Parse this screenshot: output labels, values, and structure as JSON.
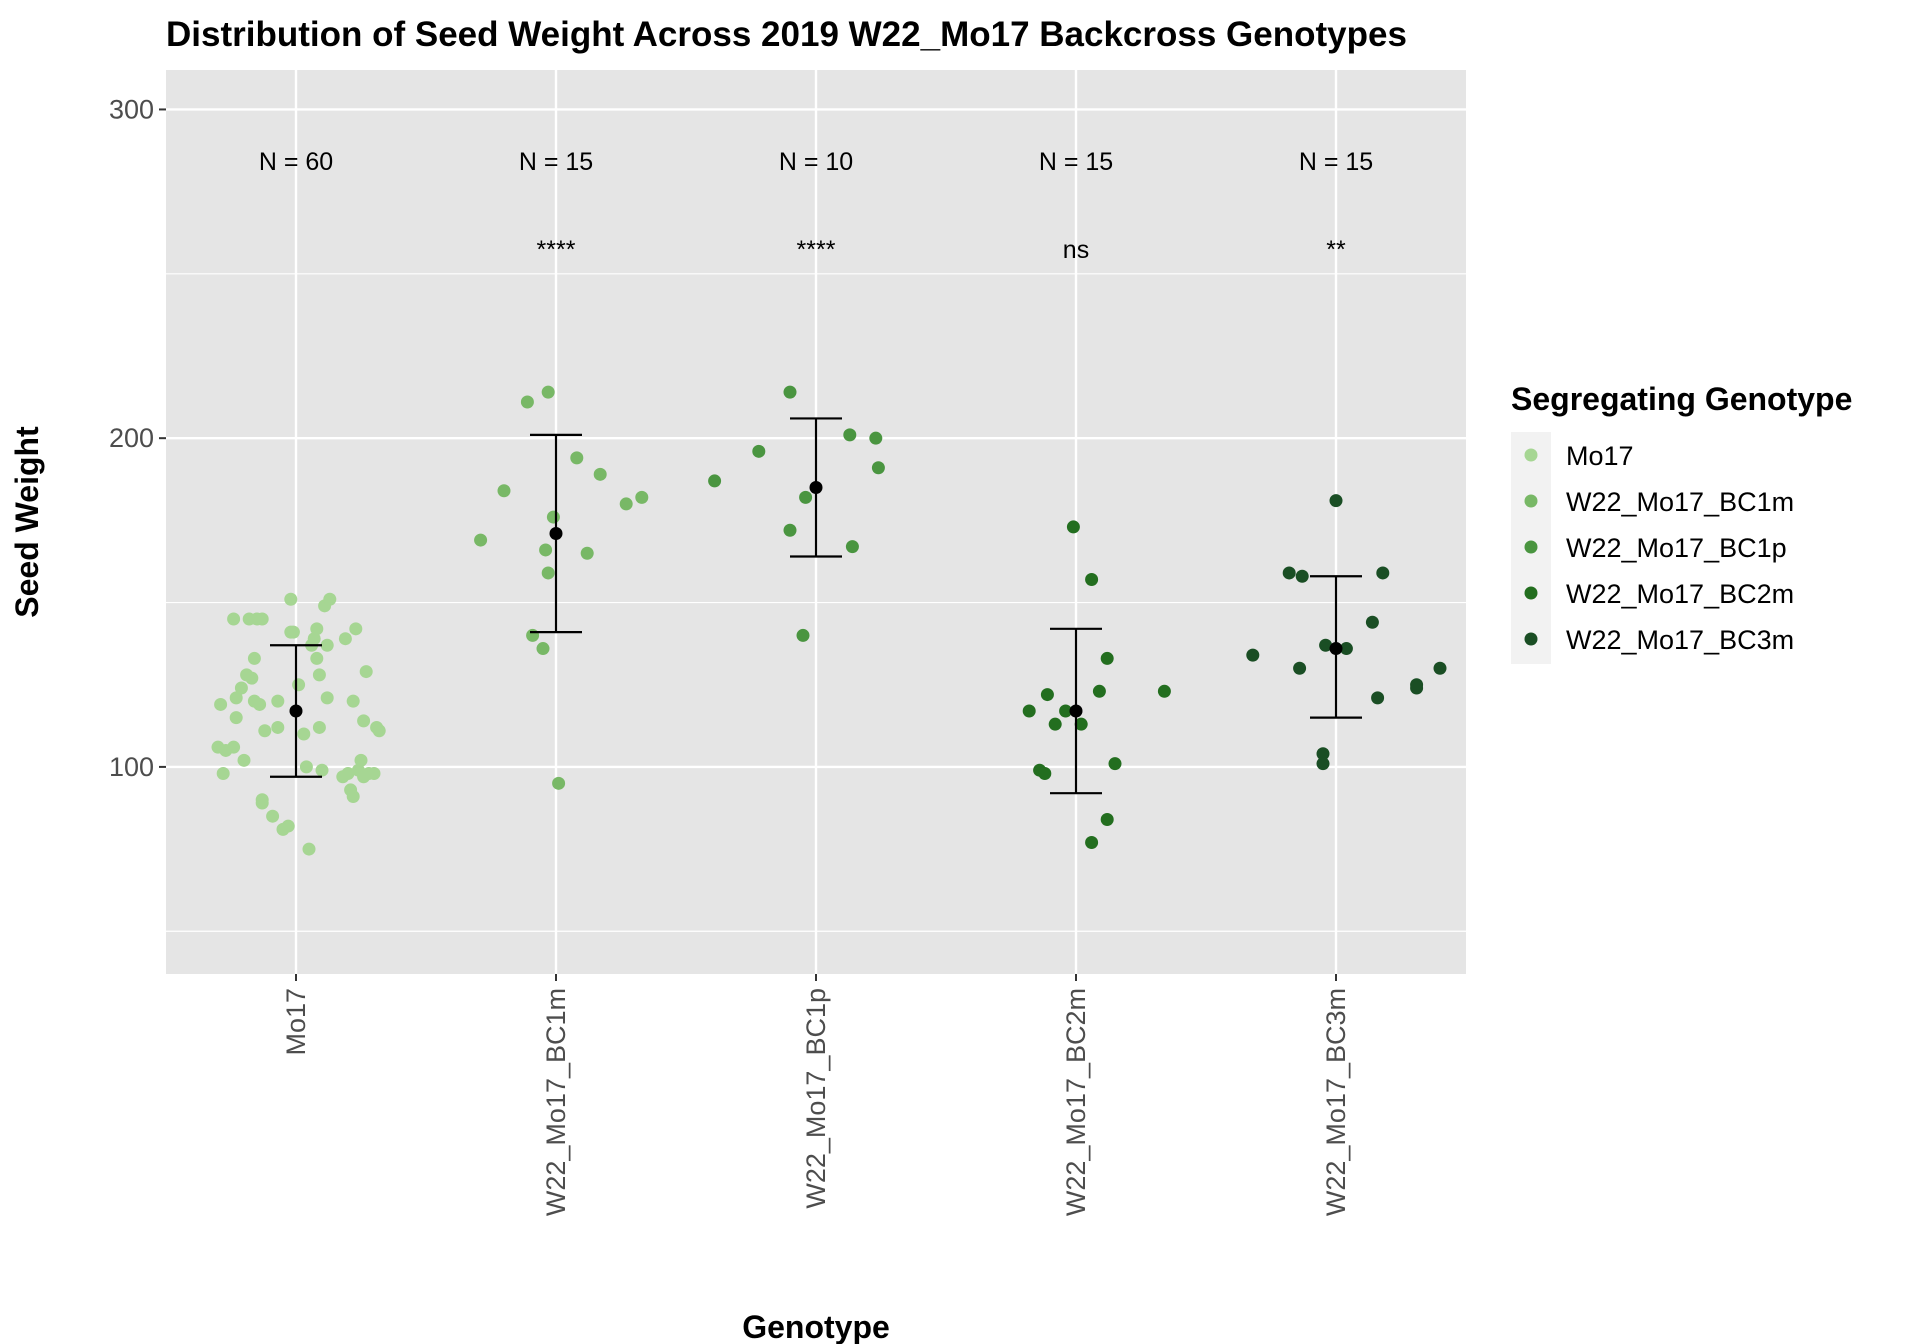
{
  "chart_data": {
    "type": "scatter",
    "title": "Distribution of Seed Weight Across 2019 W22_Mo17 Backcross Genotypes",
    "xlabel": "Genotype",
    "ylabel": "Seed Weight",
    "ylim": [
      37,
      312
    ],
    "yticks": [
      100,
      200,
      300
    ],
    "ytick_labels": [
      "100",
      "200",
      "300"
    ],
    "grid": true,
    "categories": [
      "Mo17",
      "W22_Mo17_BC1m",
      "W22_Mo17_BC1p",
      "W22_Mo17_BC2m",
      "W22_Mo17_BC3m"
    ],
    "legend": {
      "title": "Segregating Genotype",
      "position": "right",
      "items": [
        {
          "label": "Mo17",
          "color": "#a6d693"
        },
        {
          "label": "W22_Mo17_BC1m",
          "color": "#78b866"
        },
        {
          "label": "W22_Mo17_BC1p",
          "color": "#4a9540"
        },
        {
          "label": "W22_Mo17_BC2m",
          "color": "#236e1f"
        },
        {
          "label": "W22_Mo17_BC3m",
          "color": "#1a4e24"
        }
      ]
    },
    "series": [
      {
        "name": "Mo17",
        "color": "#a6d693",
        "n_label": "N = 60",
        "significance": "",
        "mean": 117,
        "error_low": 97,
        "error_high": 137,
        "points": [
          [
            -0.3,
            106
          ],
          [
            -0.27,
            105
          ],
          [
            -0.24,
            106
          ],
          [
            -0.28,
            98
          ],
          [
            -0.29,
            119
          ],
          [
            -0.23,
            121
          ],
          [
            -0.23,
            115
          ],
          [
            -0.21,
            124
          ],
          [
            -0.19,
            128
          ],
          [
            -0.2,
            102
          ],
          [
            -0.17,
            127
          ],
          [
            -0.16,
            133
          ],
          [
            -0.16,
            120
          ],
          [
            -0.14,
            119
          ],
          [
            -0.13,
            90
          ],
          [
            -0.13,
            89
          ],
          [
            -0.12,
            111
          ],
          [
            -0.09,
            85
          ],
          [
            -0.07,
            112
          ],
          [
            -0.07,
            120
          ],
          [
            -0.05,
            81
          ],
          [
            -0.03,
            82
          ],
          [
            -0.02,
            141
          ],
          [
            -0.01,
            141
          ],
          [
            0.01,
            125
          ],
          [
            0.03,
            110
          ],
          [
            0.04,
            100
          ],
          [
            0.05,
            75
          ],
          [
            0.06,
            137
          ],
          [
            0.07,
            139
          ],
          [
            0.08,
            142
          ],
          [
            0.08,
            133
          ],
          [
            0.09,
            128
          ],
          [
            0.09,
            112
          ],
          [
            0.1,
            99
          ],
          [
            0.11,
            149
          ],
          [
            0.12,
            121
          ],
          [
            0.12,
            137
          ],
          [
            0.13,
            151
          ],
          [
            0.18,
            97
          ],
          [
            0.19,
            139
          ],
          [
            0.2,
            98
          ],
          [
            0.21,
            93
          ],
          [
            0.22,
            91
          ],
          [
            0.22,
            120
          ],
          [
            0.23,
            142
          ],
          [
            0.24,
            99
          ],
          [
            0.25,
            102
          ],
          [
            0.26,
            97
          ],
          [
            0.26,
            114
          ],
          [
            0.27,
            129
          ],
          [
            0.28,
            98
          ],
          [
            0.3,
            98
          ],
          [
            0.31,
            112
          ],
          [
            0.32,
            111
          ],
          [
            -0.24,
            145
          ],
          [
            -0.18,
            145
          ],
          [
            -0.15,
            145
          ],
          [
            -0.13,
            145
          ],
          [
            -0.02,
            151
          ]
        ]
      },
      {
        "name": "W22_Mo17_BC1m",
        "color": "#78b866",
        "n_label": "N = 15",
        "significance": "****",
        "mean": 171,
        "error_low": 141,
        "error_high": 201,
        "points": [
          [
            -0.29,
            169
          ],
          [
            -0.2,
            184
          ],
          [
            -0.11,
            211
          ],
          [
            -0.09,
            140
          ],
          [
            -0.05,
            136
          ],
          [
            -0.04,
            166
          ],
          [
            -0.03,
            159
          ],
          [
            -0.03,
            214
          ],
          [
            -0.01,
            176
          ],
          [
            0.01,
            95
          ],
          [
            0.08,
            194
          ],
          [
            0.12,
            165
          ],
          [
            0.17,
            189
          ],
          [
            0.27,
            180
          ],
          [
            0.33,
            182
          ]
        ]
      },
      {
        "name": "W22_Mo17_BC1p",
        "color": "#4a9540",
        "n_label": "N = 10",
        "significance": "****",
        "mean": 185,
        "error_low": 164,
        "error_high": 206,
        "points": [
          [
            -0.39,
            187
          ],
          [
            -0.22,
            196
          ],
          [
            -0.1,
            214
          ],
          [
            -0.1,
            172
          ],
          [
            -0.05,
            140
          ],
          [
            -0.04,
            182
          ],
          [
            0.13,
            201
          ],
          [
            0.14,
            167
          ],
          [
            0.23,
            200
          ],
          [
            0.24,
            191
          ]
        ]
      },
      {
        "name": "W22_Mo17_BC2m",
        "color": "#236e1f",
        "n_label": "N = 15",
        "significance": "ns",
        "mean": 117,
        "error_low": 92,
        "error_high": 142,
        "points": [
          [
            -0.18,
            117
          ],
          [
            -0.14,
            99
          ],
          [
            -0.11,
            122
          ],
          [
            -0.12,
            98
          ],
          [
            -0.08,
            113
          ],
          [
            -0.04,
            117
          ],
          [
            -0.01,
            173
          ],
          [
            0.02,
            113
          ],
          [
            0.06,
            77
          ],
          [
            0.06,
            157
          ],
          [
            0.09,
            123
          ],
          [
            0.12,
            84
          ],
          [
            0.12,
            133
          ],
          [
            0.15,
            101
          ],
          [
            0.34,
            123
          ]
        ]
      },
      {
        "name": "W22_Mo17_BC3m",
        "color": "#1a4e24",
        "n_label": "N = 15",
        "significance": "**",
        "mean": 136,
        "error_low": 115,
        "error_high": 158,
        "points": [
          [
            -0.32,
            134
          ],
          [
            -0.18,
            159
          ],
          [
            -0.14,
            130
          ],
          [
            -0.13,
            158
          ],
          [
            -0.05,
            101
          ],
          [
            -0.05,
            104
          ],
          [
            -0.04,
            137
          ],
          [
            0.0,
            181
          ],
          [
            0.04,
            136
          ],
          [
            0.14,
            144
          ],
          [
            0.16,
            121
          ],
          [
            0.18,
            159
          ],
          [
            0.31,
            125
          ],
          [
            0.31,
            124
          ],
          [
            0.4,
            130
          ]
        ]
      }
    ]
  }
}
